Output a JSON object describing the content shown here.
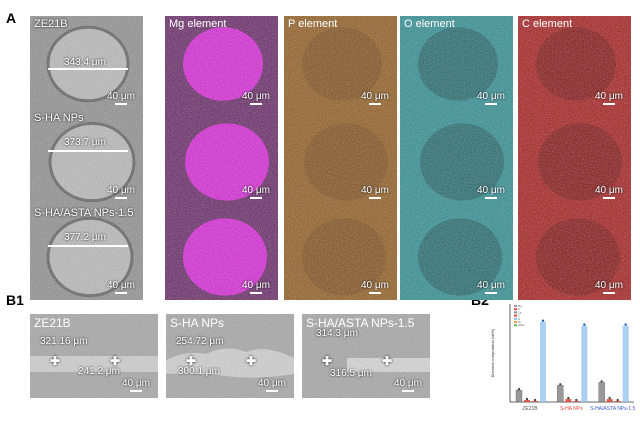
{
  "panels": {
    "a": "A",
    "b1": "B1",
    "b2": "B2"
  },
  "grid": {
    "columns": [
      "Mg element",
      "P element",
      "O element",
      "C element"
    ],
    "rows": [
      {
        "sample": "ZE21B",
        "diameter": "343.4 μm"
      },
      {
        "sample": "S-HA NPs",
        "diameter": "373.7 μm"
      },
      {
        "sample": "S-HA/ASTA NPs-1.5",
        "diameter": "377.2 μm"
      }
    ],
    "scale": "40 μm",
    "colors": {
      "mg": "#e020e0",
      "p": "#d98a2a",
      "o": "#3cc6c8",
      "c": "#d42626"
    }
  },
  "cross": [
    {
      "sample": "ZE21B",
      "top": "321.16 μm",
      "bottom": "241.2 μm"
    },
    {
      "sample": "S-HA NPs",
      "top": "254.72 μm",
      "bottom": "300.1 μm"
    },
    {
      "sample": "S-HA/ASTA NPs-1.5",
      "top": "314.3 μm",
      "bottom": "316.5 μm"
    }
  ],
  "chart_data": {
    "type": "bar",
    "ylabel": "Element composition (wt%)",
    "ylim": [
      0,
      100
    ],
    "categories": [
      "ZE21B",
      "S-HA NPs",
      "S-HA/ASTA NPs-1.5"
    ],
    "series": [
      {
        "name": "Ca",
        "color": "#8e8e8e",
        "values": [
          12,
          17,
          20
        ]
      },
      {
        "name": "P",
        "color": "#e0473a",
        "values": [
          2,
          3,
          3
        ]
      },
      {
        "name": "C",
        "color": "#e0473a",
        "values": [
          1,
          1,
          1
        ]
      },
      {
        "name": "O",
        "color": "#8fc0ee",
        "values": [
          82,
          78,
          78
        ]
      }
    ],
    "legend": [
      "Mg",
      "P",
      "Ca",
      "C",
      "O",
      "Zn",
      "Other"
    ],
    "category_colors": [
      "#555555",
      "#e0473a",
      "#3a5ad0"
    ]
  }
}
